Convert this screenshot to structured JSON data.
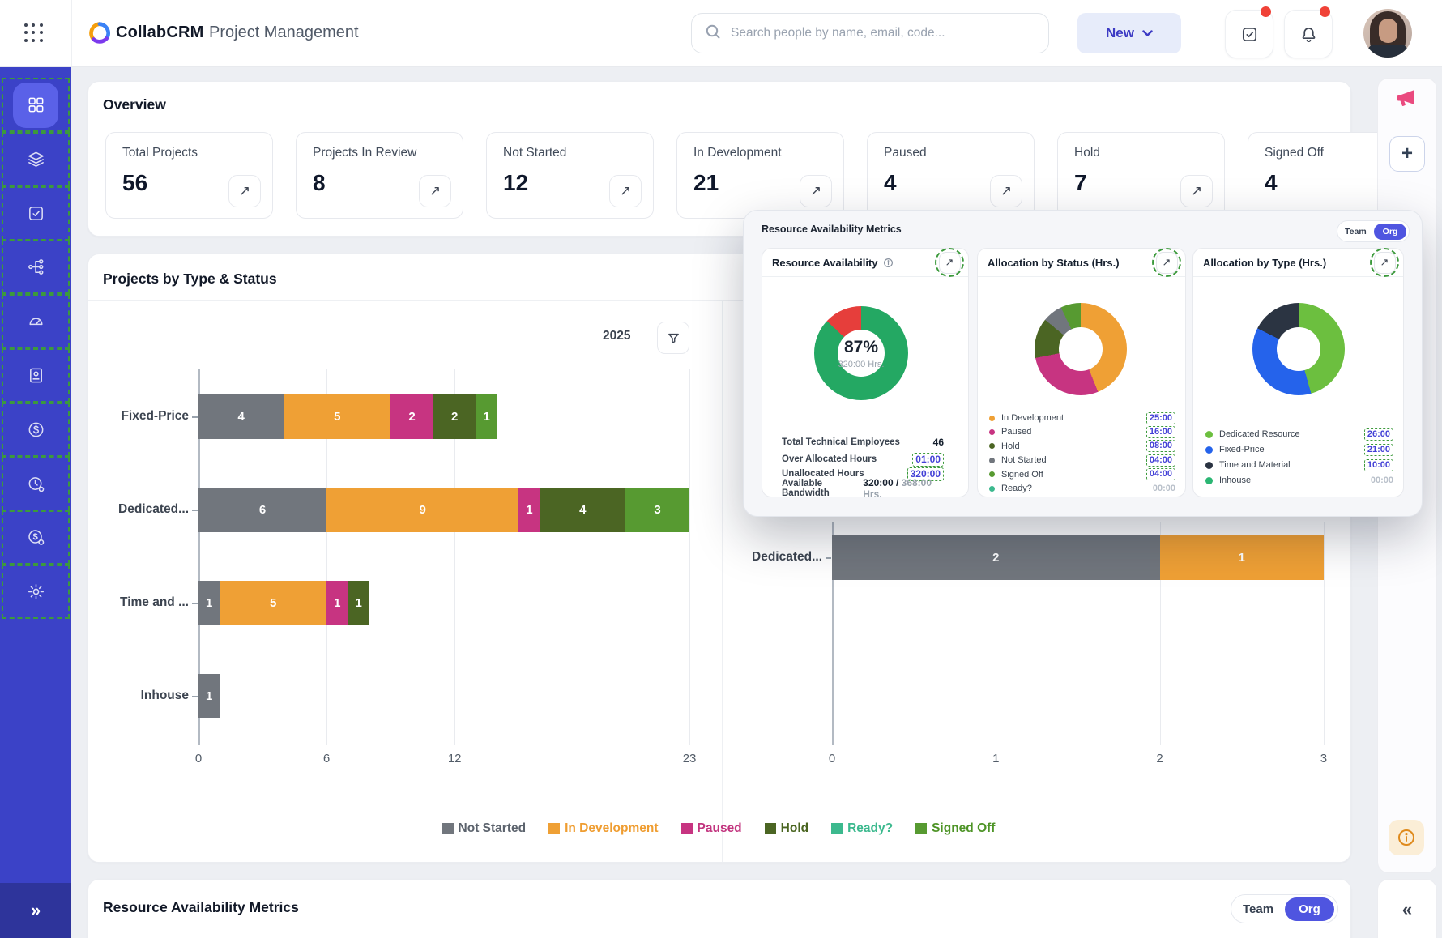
{
  "header": {
    "brand": "CollabCRM",
    "app_title": "Project Management",
    "search_placeholder": "Search people by name, email, code...",
    "new_button": "New"
  },
  "icons": {
    "expand": "↗",
    "collapse_right": "»",
    "collapse_left": "«",
    "plus": "+"
  },
  "sidebar": {
    "items": [
      {
        "name": "dashboard",
        "active": true
      },
      {
        "name": "layers"
      },
      {
        "name": "tasks",
        "badge": true
      },
      {
        "name": "workflow"
      },
      {
        "name": "meter"
      },
      {
        "name": "invoices"
      },
      {
        "name": "finance"
      },
      {
        "name": "timesheet"
      },
      {
        "name": "payroll"
      },
      {
        "name": "settings"
      }
    ]
  },
  "overview": {
    "title": "Overview",
    "cards": [
      {
        "label": "Total Projects",
        "value": "56"
      },
      {
        "label": "Projects In Review",
        "value": "8"
      },
      {
        "label": "Not Started",
        "value": "12"
      },
      {
        "label": "In Development",
        "value": "21"
      },
      {
        "label": "Paused",
        "value": "4"
      },
      {
        "label": "Hold",
        "value": "7"
      },
      {
        "label": "Signed Off",
        "value": "4"
      }
    ]
  },
  "type_status": {
    "title": "Projects by Type & Status",
    "year": "2025",
    "legend": [
      {
        "label": "Not Started",
        "color": "#71767d",
        "text": "#5c636d"
      },
      {
        "label": "In Development",
        "color": "#efa035",
        "text": "#ef9d31"
      },
      {
        "label": "Paused",
        "color": "#c73481",
        "text": "#c2357f"
      },
      {
        "label": "Hold",
        "color": "#4b6523",
        "text": "#49641f"
      },
      {
        "label": "Ready?",
        "color": "#3cb98e",
        "text": "#3cb98e"
      },
      {
        "label": "Signed Off",
        "color": "#579a31",
        "text": "#4e9427"
      }
    ],
    "chart_data": {
      "type": "bar",
      "orientation": "horizontal",
      "stacked": true,
      "categories": [
        "Fixed-Price",
        "Dedicated...",
        "Time and ...",
        "Inhouse"
      ],
      "series": [
        {
          "name": "Not Started",
          "color": "#71767d",
          "values": [
            4,
            6,
            1,
            1
          ]
        },
        {
          "name": "In Development",
          "color": "#efa035",
          "values": [
            5,
            9,
            5,
            0
          ]
        },
        {
          "name": "Paused",
          "color": "#c73481",
          "values": [
            2,
            1,
            1,
            0
          ]
        },
        {
          "name": "Hold",
          "color": "#4b6523",
          "values": [
            2,
            4,
            1,
            0
          ]
        },
        {
          "name": "Signed Off",
          "color": "#579a31",
          "values": [
            1,
            3,
            0,
            0
          ]
        }
      ],
      "xlim": [
        0,
        23
      ],
      "ticks": [
        0,
        6,
        12,
        23
      ]
    },
    "right_chart_data": {
      "type": "bar",
      "orientation": "horizontal",
      "stacked": true,
      "categories": [
        "Dedicated..."
      ],
      "series": [
        {
          "name": "Not Started",
          "color": "#71767d",
          "values": [
            2
          ]
        },
        {
          "name": "In Development",
          "color": "#efa035",
          "values": [
            1
          ]
        }
      ],
      "xlim": [
        0,
        3
      ],
      "ticks": [
        0,
        1,
        2,
        3
      ]
    }
  },
  "metrics_panel": {
    "title": "Resource Availability Metrics",
    "toggle": {
      "team": "Team",
      "org": "Org"
    },
    "availability": {
      "title": "Resource Availability",
      "center_percent": "87%",
      "center_hours": "320:00 Hrs.",
      "chart_data": {
        "type": "pie",
        "labels": [
          "Available",
          "Over Allocated"
        ],
        "values": [
          87,
          13
        ],
        "colors": [
          "#24a863",
          "#e63e3b"
        ]
      },
      "stats": [
        {
          "label": "Total Technical Employees",
          "value": "46",
          "style": "plain"
        },
        {
          "label": "Over Allocated Hours",
          "value": "01:00",
          "style": "highlight"
        },
        {
          "label": "Unallocated Hours",
          "value": "320:00",
          "style": "highlight"
        },
        {
          "label": "Available Bandwidth",
          "value": "320:00 /",
          "muted": "368:00 Hrs.",
          "style": "split"
        }
      ]
    },
    "by_status": {
      "title": "Allocation by Status (Hrs.)",
      "chart_data": {
        "type": "pie",
        "labels": [
          "In Development",
          "Paused",
          "Hold",
          "Not Started",
          "Signed Off",
          "Ready?"
        ],
        "values": [
          25,
          16,
          8,
          4,
          4,
          0
        ],
        "colors": [
          "#efa035",
          "#c73481",
          "#4b6523",
          "#71767d",
          "#579a31",
          "#3cb98e"
        ]
      },
      "rows": [
        {
          "label": "In Development",
          "color": "#efa035",
          "value": "25:00",
          "highlight": true
        },
        {
          "label": "Paused",
          "color": "#c73481",
          "value": "16:00",
          "highlight": true
        },
        {
          "label": "Hold",
          "color": "#4b6523",
          "value": "08:00",
          "highlight": true
        },
        {
          "label": "Not Started",
          "color": "#71767d",
          "value": "04:00",
          "highlight": true
        },
        {
          "label": "Signed Off",
          "color": "#579a31",
          "value": "04:00",
          "highlight": true
        },
        {
          "label": "Ready?",
          "color": "#3cb98e",
          "value": "00:00",
          "highlight": false
        }
      ]
    },
    "by_type": {
      "title": "Allocation by Type (Hrs.)",
      "chart_data": {
        "type": "pie",
        "labels": [
          "Dedicated Resource",
          "Fixed-Price",
          "Time and Material",
          "Inhouse"
        ],
        "values": [
          26,
          21,
          10,
          0
        ],
        "colors": [
          "#6cbf3f",
          "#2563eb",
          "#2b3442",
          "#2bb673"
        ]
      },
      "rows": [
        {
          "label": "Dedicated Resource",
          "color": "#6cbf3f",
          "value": "26:00",
          "highlight": true
        },
        {
          "label": "Fixed-Price",
          "color": "#2563eb",
          "value": "21:00",
          "highlight": true
        },
        {
          "label": "Time and Material",
          "color": "#2b3442",
          "value": "10:00",
          "highlight": true
        },
        {
          "label": "Inhouse",
          "color": "#2bb673",
          "value": "00:00",
          "highlight": false
        }
      ]
    }
  },
  "bottom_section": {
    "title": "Resource Availability Metrics",
    "toggle": {
      "team": "Team",
      "org": "Org"
    }
  }
}
